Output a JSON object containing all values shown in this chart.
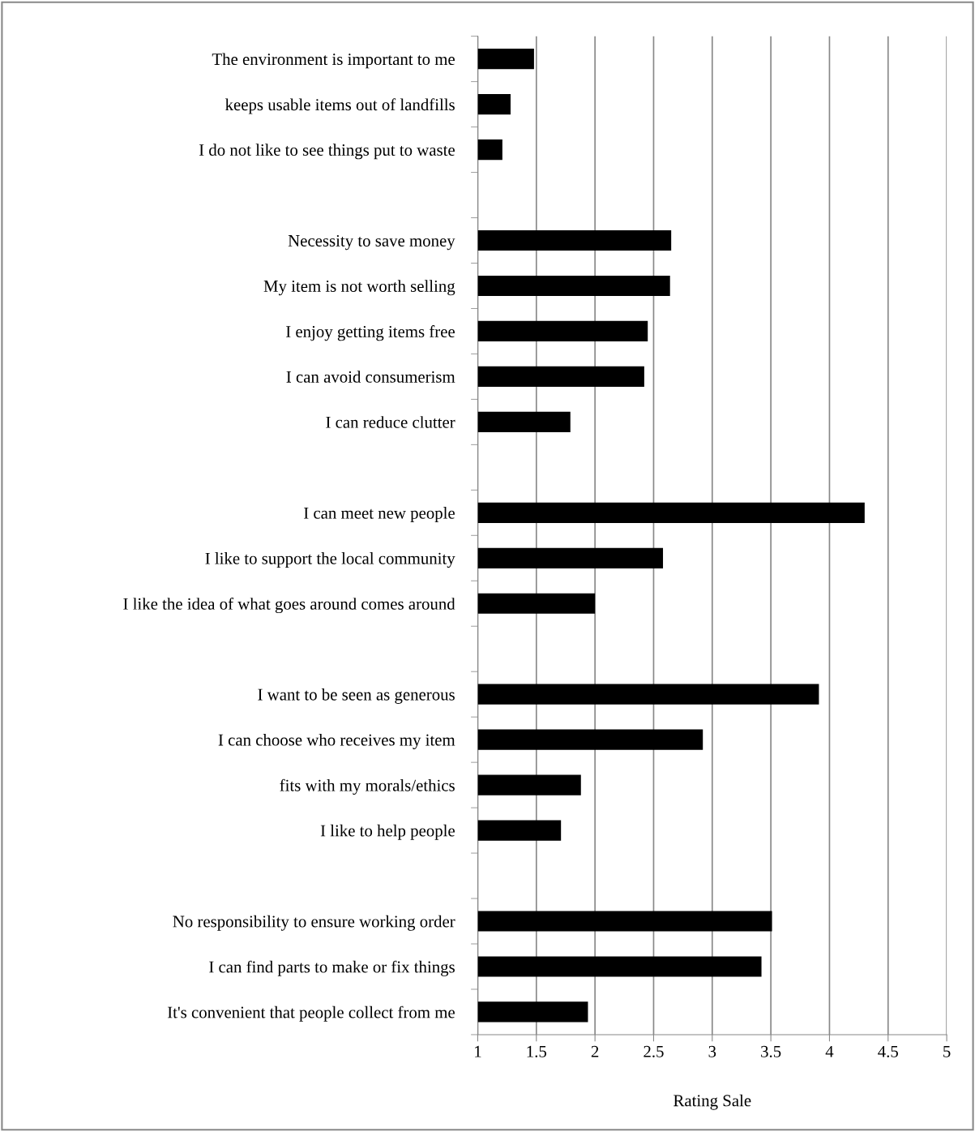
{
  "chart_data": {
    "type": "bar",
    "orientation": "horizontal",
    "xlabel": "Rating Sale",
    "categories": [
      "The environment is important to me",
      "keeps usable items out of landfills",
      "I do not like to see things put to waste",
      null,
      "Necessity to save money",
      "My item is not worth selling",
      "I enjoy getting items free",
      "I can avoid consumerism",
      "I can reduce clutter",
      null,
      "I can meet new people",
      "I like to support the local community",
      "I like the idea of what goes around comes around",
      null,
      "I want to be seen as generous",
      "I can choose who receives my item",
      "fits with my morals/ethics",
      "I like to help people",
      null,
      "No responsibility to ensure working order",
      "I can find parts to make or fix things",
      "It's convenient that people collect from me"
    ],
    "values": [
      1.48,
      1.28,
      1.21,
      null,
      2.65,
      2.64,
      2.45,
      2.42,
      1.79,
      null,
      4.3,
      2.58,
      2.0,
      null,
      3.91,
      2.92,
      1.88,
      1.71,
      null,
      3.51,
      3.42,
      1.94
    ],
    "color": "#000000",
    "xlim": [
      1,
      5
    ],
    "xticks": [
      1,
      1.5,
      2,
      2.5,
      3,
      3.5,
      4,
      4.5,
      5
    ],
    "grid": "x"
  }
}
